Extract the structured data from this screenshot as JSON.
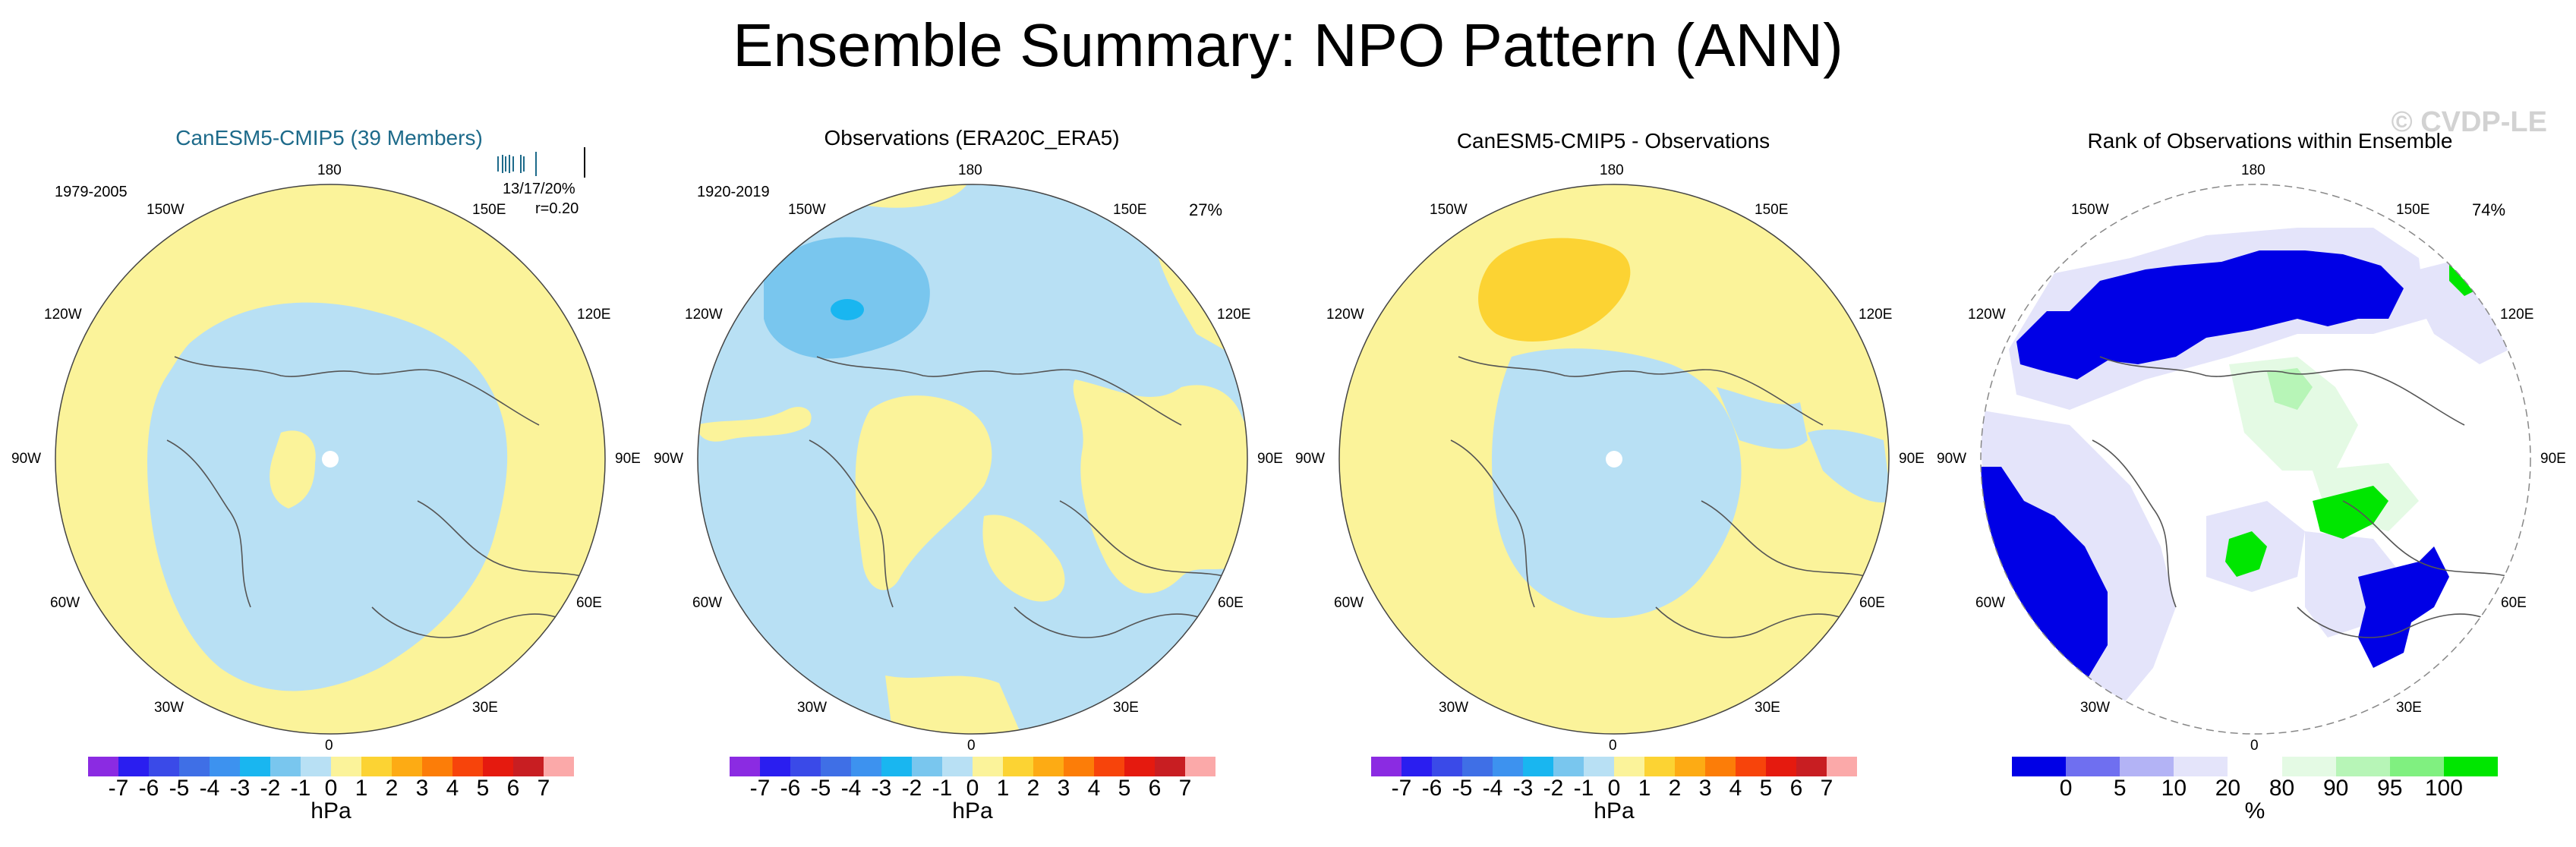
{
  "header": {
    "title": "Ensemble Summary: NPO Pattern (ANN)",
    "watermark": "© CVDP-LE"
  },
  "panels": [
    {
      "title": "CanESM5-CMIP5 (39 Members)",
      "title_color": "#1d6a8a",
      "period": "1979-2005",
      "stats_line1": "13/17/20%",
      "stats_line2": "r=0.20",
      "colorbar": "pressure"
    },
    {
      "title": "Observations (ERA20C_ERA5)",
      "title_color": "#000000",
      "period": "1920-2019",
      "percent": "27%",
      "colorbar": "pressure"
    },
    {
      "title": "CanESM5-CMIP5 - Observations",
      "title_color": "#000000",
      "colorbar": "pressure"
    },
    {
      "title": "Rank of Observations within Ensemble",
      "title_color": "#000000",
      "percent": "74%",
      "colorbar": "rank"
    }
  ],
  "longitude_labels": {
    "top": "180",
    "bottom": "0",
    "upper_left": "150W",
    "upper_right": "150E",
    "left_upper": "120W",
    "right_upper": "120E",
    "left": "90W",
    "right": "90E",
    "left_lower": "60W",
    "right_lower": "60E",
    "lower_left": "30W",
    "lower_right": "30E"
  },
  "pressure_colorbar": {
    "colors": [
      "#8b2be2",
      "#2a1ef0",
      "#3a4ae8",
      "#3f6fe6",
      "#3d92ef",
      "#19b6f0",
      "#79c6ee",
      "#b8e0f4",
      "#fbf39a",
      "#fcd333",
      "#fdab14",
      "#fc7d08",
      "#f7440b",
      "#e51a0f",
      "#c81e22",
      "#fba9a9"
    ],
    "ticks": [
      "-7",
      "-6",
      "-5",
      "-4",
      "-3",
      "-2",
      "-1",
      "0",
      "1",
      "2",
      "3",
      "4",
      "5",
      "6",
      "7"
    ],
    "unit": "hPa"
  },
  "rank_colorbar": {
    "colors": [
      "#0000e6",
      "#6f6ff0",
      "#b3b3f5",
      "#e4e4fa",
      "#ffffff",
      "#e4fae4",
      "#b7f5b7",
      "#80f080",
      "#00e600"
    ],
    "ticks": [
      "0",
      "5",
      "10",
      "20",
      "80",
      "90",
      "95",
      "100"
    ],
    "unit": "%"
  },
  "map_colors": {
    "pos_weak": "#fbf39a",
    "neg_weak": "#b8e0f4",
    "neg_mid": "#79c6ee",
    "neg_strong": "#19b6f0",
    "pos_mid": "#fcd333",
    "rank_low": "#0000e6",
    "rank_light": "#e4e4fa",
    "rank_high": "#00e600",
    "rank_light_green": "#e4fae4"
  }
}
